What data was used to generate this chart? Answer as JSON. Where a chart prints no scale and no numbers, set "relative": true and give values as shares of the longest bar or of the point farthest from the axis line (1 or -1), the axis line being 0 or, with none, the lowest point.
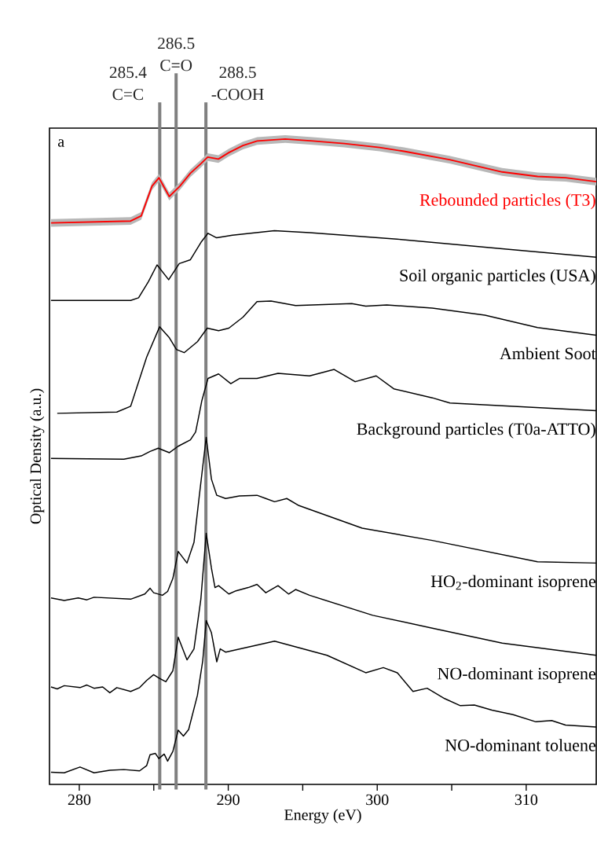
{
  "chart_data": {
    "type": "line",
    "relative": true,
    "xlabel": "Energy (eV)",
    "ylabel": "Optical Density (a.u.)",
    "xlim": [
      278,
      314.7
    ],
    "xticks": [
      280,
      {
        "value": 285,
        "label": null
      },
      290,
      {
        "value": 295,
        "label": null
      },
      300,
      {
        "value": 305,
        "label": null
      },
      310
    ],
    "annotations": [
      "a"
    ],
    "ref_lines": [
      {
        "axis": "x",
        "value": 285.4,
        "label": "285.4 C=C",
        "color": "#808080"
      },
      {
        "axis": "x",
        "value": 286.5,
        "label": "286.5 C=O",
        "color": "#808080"
      },
      {
        "axis": "x",
        "value": 288.5,
        "label": "288.5 -COOH",
        "color": "#808080"
      }
    ],
    "series": [
      {
        "name": "Rebounded particles (T3)",
        "color": "#ff0000",
        "x": [
          278.1,
          283.45,
          284.16,
          284.88,
          285.35,
          286.04,
          286.75,
          287.46,
          288.17,
          288.62,
          289.34,
          290.04,
          290.99,
          291.94,
          293.82,
          295.68,
          297.79,
          300.16,
          301.8,
          304.85,
          308.39,
          310.76,
          312.64,
          314.7
        ],
        "values": [
          0.87,
          0.873,
          0.881,
          0.927,
          0.94,
          0.911,
          0.927,
          0.947,
          0.962,
          0.972,
          0.969,
          0.979,
          0.99,
          0.997,
          1.0,
          0.997,
          0.993,
          0.987,
          0.981,
          0.968,
          0.949,
          0.942,
          0.94,
          0.934
        ],
        "lower": [
          0.864,
          0.867,
          0.875,
          0.921,
          0.934,
          0.905,
          0.921,
          0.941,
          0.956,
          0.966,
          0.963,
          0.973,
          0.984,
          0.991,
          0.994,
          0.991,
          0.987,
          0.981,
          0.975,
          0.962,
          0.943,
          0.936,
          0.934,
          0.928
        ],
        "upper": [
          0.876,
          0.879,
          0.887,
          0.933,
          0.946,
          0.917,
          0.933,
          0.953,
          0.968,
          0.978,
          0.975,
          0.985,
          0.996,
          1.003,
          1.006,
          1.003,
          0.999,
          0.993,
          0.987,
          0.974,
          0.955,
          0.948,
          0.946,
          0.94
        ]
      },
      {
        "name": "Soil organic particles (USA)",
        "color": "#000000",
        "x": [
          278.1,
          283.45,
          283.98,
          284.64,
          285.22,
          286.0,
          286.71,
          287.46,
          288.17,
          288.64,
          289.22,
          290.28,
          293.1,
          295.46,
          301.32,
          308.39,
          314.7
        ],
        "values": [
          0.75,
          0.75,
          0.754,
          0.779,
          0.805,
          0.782,
          0.807,
          0.813,
          0.84,
          0.854,
          0.847,
          0.851,
          0.858,
          0.855,
          0.845,
          0.83,
          0.817
        ]
      },
      {
        "name": "Ambient Soot",
        "color": "#000000",
        "x": [
          278.52,
          282.52,
          283.45,
          284.52,
          285.39,
          286.05,
          286.52,
          287.04,
          287.93,
          288.59,
          289.35,
          290.04,
          290.99,
          291.93,
          292.87,
          294.52,
          298.29,
          299.23,
          300.64,
          303.7,
          307.23,
          310.76,
          314.7
        ],
        "values": [
          0.575,
          0.577,
          0.586,
          0.662,
          0.709,
          0.692,
          0.674,
          0.669,
          0.686,
          0.707,
          0.703,
          0.707,
          0.724,
          0.748,
          0.749,
          0.742,
          0.745,
          0.741,
          0.743,
          0.738,
          0.727,
          0.708,
          0.696
        ]
      },
      {
        "name": "Background particles (T0a-ATTO)",
        "color": "#000000",
        "x": [
          278.1,
          282.99,
          284.16,
          284.75,
          285.3,
          286.05,
          286.64,
          287.46,
          287.81,
          288.12,
          288.22,
          288.64,
          289.35,
          290.17,
          290.75,
          291.93,
          293.34,
          295.46,
          297.11,
          298.52,
          299.93,
          301.11,
          303.7,
          304.88,
          314.7
        ],
        "values": [
          0.505,
          0.504,
          0.509,
          0.516,
          0.521,
          0.514,
          0.524,
          0.534,
          0.546,
          0.582,
          0.594,
          0.629,
          0.636,
          0.621,
          0.629,
          0.629,
          0.637,
          0.633,
          0.643,
          0.624,
          0.633,
          0.613,
          0.599,
          0.591,
          0.579
        ]
      },
      {
        "name": "HO$_{2}$-dominant isoprene",
        "color": "#000000",
        "x": [
          278.1,
          278.99,
          279.93,
          280.51,
          280.99,
          283.45,
          284.4,
          284.75,
          284.99,
          285.58,
          285.93,
          286.28,
          286.64,
          287.23,
          287.7,
          288.05,
          288.52,
          288.87,
          289.23,
          289.82,
          290.75,
          291.93,
          292.52,
          293.11,
          293.93,
          294.75,
          298.99,
          303.7,
          310.76,
          314.7
        ],
        "values": [
          0.289,
          0.285,
          0.289,
          0.286,
          0.29,
          0.287,
          0.295,
          0.304,
          0.297,
          0.293,
          0.299,
          0.319,
          0.361,
          0.343,
          0.375,
          0.446,
          0.538,
          0.473,
          0.448,
          0.443,
          0.447,
          0.448,
          0.443,
          0.438,
          0.443,
          0.432,
          0.397,
          0.378,
          0.345,
          0.343
        ]
      },
      {
        "name": "NO-dominant isoprene",
        "color": "#000000",
        "x": [
          278.1,
          278.52,
          278.99,
          280.05,
          280.51,
          280.99,
          281.57,
          282.05,
          282.52,
          283.45,
          284.05,
          284.52,
          284.99,
          285.34,
          285.81,
          286.28,
          286.64,
          287.23,
          287.7,
          288.16,
          288.52,
          288.87,
          289.11,
          289.35,
          290.04,
          290.52,
          291.34,
          291.93,
          292.52,
          293.34,
          294.05,
          294.52,
          295.46,
          299.7,
          303.7,
          308.39,
          314.7
        ],
        "values": [
          0.151,
          0.148,
          0.153,
          0.15,
          0.154,
          0.149,
          0.151,
          0.142,
          0.15,
          0.144,
          0.15,
          0.161,
          0.17,
          0.165,
          0.159,
          0.176,
          0.228,
          0.193,
          0.21,
          0.287,
          0.389,
          0.335,
          0.305,
          0.308,
          0.295,
          0.3,
          0.305,
          0.31,
          0.297,
          0.308,
          0.295,
          0.302,
          0.293,
          0.262,
          0.242,
          0.219,
          0.2
        ]
      },
      {
        "name": "NO-dominant toluene",
        "color": "#000000",
        "x": [
          278.1,
          278.99,
          280.05,
          280.99,
          282.05,
          282.99,
          284.05,
          284.52,
          284.75,
          285.11,
          285.34,
          285.7,
          285.93,
          286.28,
          286.64,
          286.99,
          287.34,
          287.93,
          288.29,
          288.52,
          288.87,
          289.23,
          289.46,
          289.82,
          293.11,
          296.63,
          299.23,
          300.41,
          301.35,
          302.4,
          303.35,
          304.52,
          305.58,
          306.52,
          307.7,
          309.12,
          310.65,
          311.71,
          312.64,
          314.7
        ],
        "values": [
          0.019,
          0.018,
          0.027,
          0.018,
          0.022,
          0.023,
          0.021,
          0.029,
          0.046,
          0.048,
          0.04,
          0.047,
          0.036,
          0.051,
          0.084,
          0.075,
          0.085,
          0.138,
          0.192,
          0.254,
          0.235,
          0.19,
          0.21,
          0.205,
          0.222,
          0.2,
          0.173,
          0.181,
          0.173,
          0.144,
          0.149,
          0.133,
          0.122,
          0.123,
          0.115,
          0.108,
          0.097,
          0.099,
          0.092,
          0.089
        ]
      }
    ]
  }
}
